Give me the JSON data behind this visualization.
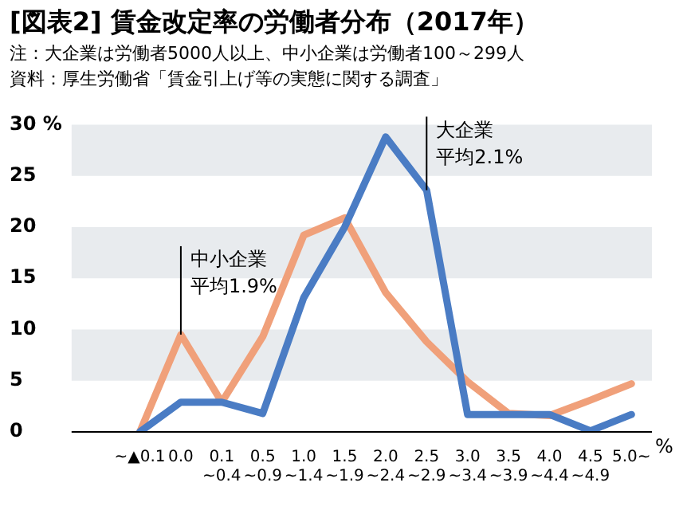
{
  "chart_data": {
    "type": "line",
    "title": "[図表2] 賃金改定率の労働者分布（2017年）",
    "annotations": [
      "注：大企業は労働者5000人以上、中小企業は労働者100～299人",
      "資料：厚生労働省「賃金引上げ等の実態に関する調査」",
      {
        "text": "大企業",
        "x": "2.5\n~2.9",
        "y": 23.6
      },
      {
        "text": "平均2.1%",
        "x": "2.5\n~2.9",
        "y": 23.6
      },
      {
        "text": "中小企業",
        "x": "0.0",
        "y": 9.5
      },
      {
        "text": "平均1.9%",
        "x": "0.0",
        "y": 9.5
      }
    ],
    "bands": [
      {
        "axis": "y",
        "from": 5,
        "to": 10,
        "color": "#e8ebee"
      },
      {
        "axis": "y",
        "from": 15,
        "to": 20,
        "color": "#e8ebee"
      },
      {
        "axis": "y",
        "from": 25,
        "to": 30,
        "color": "#e8ebee"
      }
    ],
    "xlabel": "%",
    "categories": [
      "~▲0.1",
      "0.0",
      "0.1\n~0.4",
      "0.5\n~0.9",
      "1.0\n~1.4",
      "1.5\n~1.9",
      "2.0\n~2.4",
      "2.5\n~2.9",
      "3.0\n~3.4",
      "3.5\n~3.9",
      "4.0\n~4.4",
      "4.5\n~4.9",
      "5.0~"
    ],
    "series": [
      {
        "color": "#4a7cc4",
        "values": [
          0,
          2.9,
          2.9,
          1.8,
          13.1,
          20,
          28.8,
          23.6,
          1.7,
          1.7,
          1.7,
          0.1,
          1.7
        ]
      },
      {
        "color": "#f0a07a",
        "values": [
          0,
          9.5,
          2.9,
          9.3,
          19.2,
          20.9,
          13.6,
          8.8,
          4.9,
          1.8,
          1.6,
          3.1,
          4.7
        ]
      }
    ],
    "ylim": [
      0,
      30
    ],
    "yticks": [
      0,
      5,
      10,
      15,
      20,
      25,
      {
        "value": 30,
        "label": "30 %"
      }
    ],
    "legend": false,
    "marker": "none",
    "line_style": "solid"
  }
}
